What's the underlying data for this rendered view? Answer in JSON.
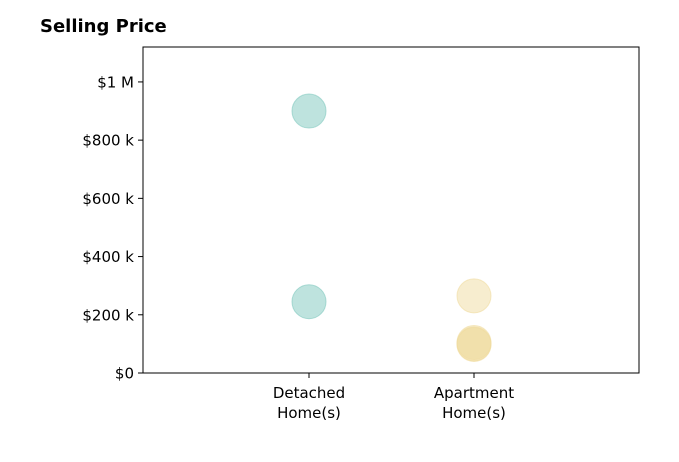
{
  "chart_data": {
    "type": "scatter",
    "title": "Selling Price",
    "xlabel": "",
    "ylabel": "",
    "categories": [
      "Detached\nHome(s)",
      "Apartment\nHome(s)"
    ],
    "ylim": [
      0,
      1120000
    ],
    "y_ticks": [
      {
        "value": 0,
        "label": "$0"
      },
      {
        "value": 200000,
        "label": "$200 k"
      },
      {
        "value": 400000,
        "label": "$400 k"
      },
      {
        "value": 600000,
        "label": "$600 k"
      },
      {
        "value": 800000,
        "label": "$800 k"
      },
      {
        "value": 1000000,
        "label": "$1 M"
      }
    ],
    "grid": false,
    "legend": "none",
    "series": [
      {
        "category_index": 0,
        "color": "#7ec8be",
        "edge_color": "#7ec8be",
        "values": [
          900000,
          245000
        ]
      },
      {
        "category_index": 1,
        "color": "#f0dca0",
        "edge_color": "#f0dca0",
        "values": [
          265000,
          105000,
          100000,
          98000
        ]
      }
    ]
  }
}
